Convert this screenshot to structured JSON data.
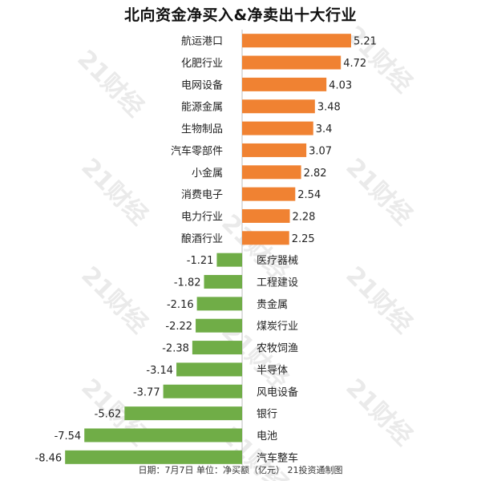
{
  "title": "北向资金净买入&净卖出十大行业",
  "footer": "日期：7月7日  单位：净买额（亿元）  21投资通制图",
  "watermark": "21财经",
  "colors": {
    "positive": "#f08232",
    "negative": "#70ad47",
    "text": "#222222"
  },
  "chart_data": {
    "type": "bar",
    "orientation": "horizontal",
    "title": "北向资金净买入&净卖出十大行业",
    "unit": "亿元",
    "categories": [
      "航运港口",
      "化肥行业",
      "电网设备",
      "能源金属",
      "生物制品",
      "汽车零部件",
      "小金属",
      "消费电子",
      "电力行业",
      "酿酒行业",
      "医疗器械",
      "工程建设",
      "贵金属",
      "煤炭行业",
      "农牧饲渔",
      "半导体",
      "风电设备",
      "银行",
      "电池",
      "汽车整车"
    ],
    "values": [
      5.21,
      4.72,
      4.03,
      3.48,
      3.4,
      3.07,
      2.82,
      2.54,
      2.28,
      2.25,
      -1.21,
      -1.82,
      -2.16,
      -2.22,
      -2.38,
      -3.14,
      -3.77,
      -5.62,
      -7.54,
      -8.46
    ],
    "value_labels": [
      "5.21",
      "4.72",
      "4.03",
      "3.48",
      "3.4",
      "3.07",
      "2.82",
      "2.54",
      "2.28",
      "2.25",
      "-1.21",
      "-1.82",
      "-2.16",
      "-2.22",
      "-2.38",
      "-3.14",
      "-3.77",
      "-5.62",
      "-7.54",
      "-8.46"
    ],
    "xlim": [
      -8.46,
      5.21
    ],
    "grid": false,
    "legend": "none"
  }
}
